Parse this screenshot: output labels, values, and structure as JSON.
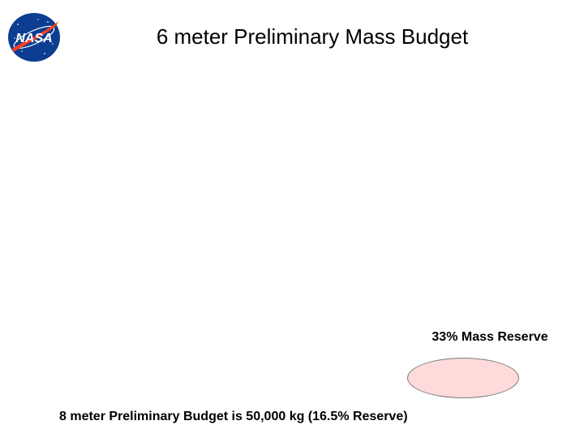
{
  "header": {
    "logo_text": "NASA",
    "title": "6 meter Preliminary Mass Budget"
  },
  "reserve": {
    "label": "33% Mass Reserve",
    "fill_color": "#ffdada"
  },
  "footer": {
    "note": "8 meter Preliminary Budget is 50,000 kg (16.5% Reserve)"
  },
  "colors": {
    "nasa_blue": "#0b3d91",
    "nasa_red": "#fc3d21"
  }
}
